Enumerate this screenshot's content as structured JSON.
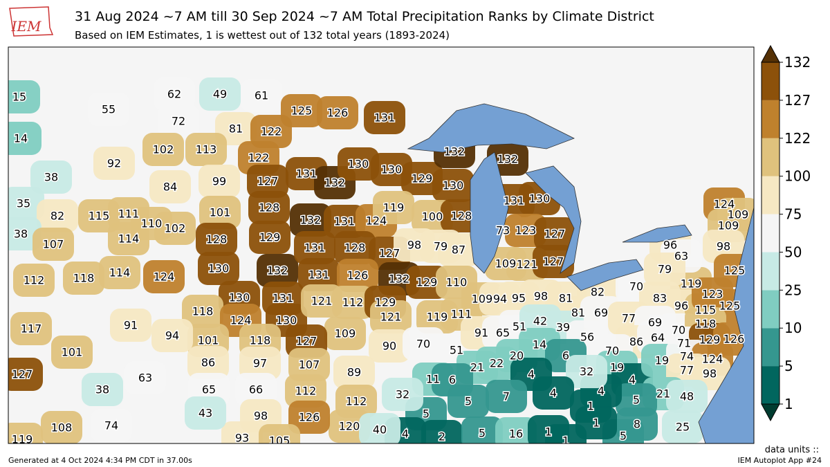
{
  "header": {
    "logo": "IEM",
    "title": "31 Aug 2024 ~7 AM till 30 Sep 2024 ~7 AM Total Precipitation Ranks by Climate District",
    "subtitle": "Based on IEM Estimates, 1 is wettest out of 132 total years (1893-2024)"
  },
  "districts": [
    15,
    55,
    14,
    92,
    38,
    62,
    49,
    61,
    72,
    81,
    122,
    102,
    113,
    122,
    125,
    126,
    131,
    131,
    132,
    130,
    132,
    131,
    124,
    130,
    129,
    132,
    130,
    119,
    100,
    128,
    132,
    131,
    130,
    73,
    123,
    127,
    109,
    121,
    127,
    84,
    99,
    127,
    101,
    128,
    110,
    102,
    128,
    129,
    35,
    82,
    115,
    111,
    38,
    107,
    114,
    112,
    118,
    114,
    124,
    130,
    132,
    130,
    131,
    118,
    124,
    130,
    131,
    128,
    127,
    131,
    126,
    132,
    121,
    112,
    129,
    98,
    79,
    87,
    129,
    110,
    121,
    119,
    111,
    90,
    70,
    51,
    109,
    94,
    95,
    91,
    65,
    51,
    21,
    22,
    98,
    81,
    82,
    81,
    69,
    42,
    39,
    56,
    14,
    20,
    6,
    70,
    119,
    83,
    96,
    115,
    123,
    125,
    77,
    69,
    70,
    118,
    86,
    64,
    71,
    129,
    126,
    124,
    109,
    109,
    96,
    63,
    98,
    79,
    125,
    70,
    19,
    4,
    19,
    74,
    124,
    77,
    98,
    21,
    48,
    5,
    4,
    1,
    32,
    25,
    8,
    5,
    1,
    11,
    6,
    4,
    7,
    4,
    5,
    5,
    4,
    2,
    5,
    16,
    1,
    1,
    109,
    89,
    112,
    120,
    32,
    40,
    101,
    118,
    127,
    86,
    97,
    107,
    65,
    66,
    112,
    98,
    126,
    93,
    105,
    117,
    91,
    94,
    101,
    127,
    63,
    38,
    119,
    108,
    74,
    43
  ],
  "colorbar": {
    "ticks": [
      1,
      5,
      10,
      25,
      50,
      75,
      100,
      122,
      127,
      132
    ],
    "colors": [
      "#01665e",
      "#35978f",
      "#80cdc1",
      "#c7eae5",
      "#f5f5f5",
      "#f6e8c3",
      "#dfc27d",
      "#bf812d",
      "#8c510a",
      "#543005"
    ]
  },
  "footer": {
    "units": "data units ::",
    "generated": "Generated at 4 Oct 2024 4:34 PM CDT in 37.00s",
    "app": "IEM Autoplot App #24"
  }
}
